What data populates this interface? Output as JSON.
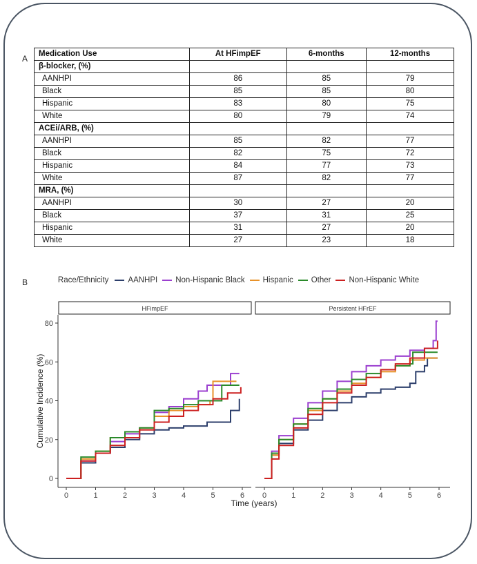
{
  "panels": {
    "a": "A",
    "b": "B"
  },
  "table": {
    "headers": [
      "Medication Use",
      "At HFimpEF",
      "6-months",
      "12-months"
    ],
    "sections": [
      {
        "title": "β-blocker, (%)",
        "rows": [
          {
            "group": "AANHPI",
            "values": [
              "86",
              "85",
              "79"
            ]
          },
          {
            "group": "Black",
            "values": [
              "85",
              "85",
              "80"
            ]
          },
          {
            "group": "Hispanic",
            "values": [
              "83",
              "80",
              "75"
            ]
          },
          {
            "group": "White",
            "values": [
              "80",
              "79",
              "74"
            ]
          }
        ]
      },
      {
        "title": "ACEi/ARB, (%)",
        "rows": [
          {
            "group": "AANHPI",
            "values": [
              "85",
              "82",
              "77"
            ]
          },
          {
            "group": "Black",
            "values": [
              "82",
              "75",
              "72"
            ]
          },
          {
            "group": "Hispanic",
            "values": [
              "84",
              "77",
              "73"
            ]
          },
          {
            "group": "White",
            "values": [
              "87",
              "82",
              "77"
            ]
          }
        ]
      },
      {
        "title": "MRA, (%)",
        "rows": [
          {
            "group": "AANHPI",
            "values": [
              "30",
              "27",
              "20"
            ]
          },
          {
            "group": "Black",
            "values": [
              "37",
              "31",
              "25"
            ]
          },
          {
            "group": "Hispanic",
            "values": [
              "31",
              "27",
              "20"
            ]
          },
          {
            "group": "White",
            "values": [
              "27",
              "23",
              "18"
            ]
          }
        ]
      }
    ]
  },
  "chart_data": {
    "type": "line",
    "title": "",
    "legend_title": "Race/Ethnicity",
    "legend_position": "top",
    "xlabel": "Time (years)",
    "ylabel": "Cumulative Incidence (%)",
    "xlim": [
      0,
      6
    ],
    "ylim": [
      0,
      80
    ],
    "xticks": [
      0,
      1,
      2,
      3,
      4,
      5,
      6
    ],
    "yticks": [
      0,
      20,
      40,
      60,
      80
    ],
    "grid": false,
    "series_meta": [
      {
        "name": "AANHPI",
        "color": "#2c3e6b"
      },
      {
        "name": "Non-Hispanic Black",
        "color": "#9b3fcf"
      },
      {
        "name": "Hispanic",
        "color": "#e8922a"
      },
      {
        "name": "Other",
        "color": "#2a8a2a"
      },
      {
        "name": "Non-Hispanic White",
        "color": "#cc2020"
      }
    ],
    "facets": [
      {
        "label": "HFimpEF",
        "series": [
          {
            "name": "AANHPI",
            "x": [
              0,
              0.5,
              1,
              1.5,
              2,
              2.5,
              3,
              3.5,
              4,
              4.5,
              4.8,
              5.5,
              5.6,
              5.9
            ],
            "y": [
              0,
              8,
              13,
              16,
              20,
              23,
              25,
              26,
              27,
              27,
              29,
              29,
              35,
              41
            ]
          },
          {
            "name": "Non-Hispanic Black",
            "x": [
              0,
              0.5,
              1,
              1.5,
              2,
              2.5,
              3,
              3.5,
              4,
              4.5,
              4.8,
              5.5,
              5.6,
              5.9
            ],
            "y": [
              0,
              9,
              13,
              19,
              23,
              26,
              34,
              37,
              41,
              45,
              48,
              48,
              54,
              54
            ]
          },
          {
            "name": "Hispanic",
            "x": [
              0,
              0.5,
              1,
              1.5,
              2,
              2.5,
              3,
              3.5,
              4,
              4.5,
              4.9,
              5.0,
              5.8
            ],
            "y": [
              0,
              10,
              14,
              21,
              24,
              26,
              32,
              35,
              37,
              38,
              40,
              50,
              50
            ]
          },
          {
            "name": "Other",
            "x": [
              0,
              0.5,
              1,
              1.5,
              2,
              2.5,
              3,
              3.5,
              4,
              4.5,
              5.2,
              5.3,
              5.9
            ],
            "y": [
              0,
              11,
              14,
              21,
              24,
              26,
              35,
              36,
              38,
              40,
              40,
              48,
              48
            ]
          },
          {
            "name": "Non-Hispanic White",
            "x": [
              0,
              0.5,
              1,
              1.5,
              2,
              2.5,
              3,
              3.5,
              4,
              4.5,
              5,
              5.5,
              5.95
            ],
            "y": [
              0,
              9,
              13,
              17,
              21,
              25,
              29,
              32,
              35,
              38,
              41,
              44,
              47
            ]
          }
        ]
      },
      {
        "label": "Persistent HFrEF",
        "series": [
          {
            "name": "AANHPI",
            "x": [
              0,
              0.25,
              0.5,
              1,
              1.5,
              2,
              2.5,
              3,
              3.5,
              4,
              4.5,
              5,
              5.2,
              5.5,
              5.6,
              5.95
            ],
            "y": [
              0,
              12,
              18,
              25,
              30,
              35,
              39,
              42,
              44,
              46,
              47,
              49,
              55,
              58,
              62,
              62
            ]
          },
          {
            "name": "Non-Hispanic Black",
            "x": [
              0,
              0.25,
              0.5,
              1,
              1.5,
              2,
              2.5,
              3,
              3.5,
              4,
              4.5,
              5,
              5.5,
              5.8,
              5.9,
              5.95
            ],
            "y": [
              0,
              14,
              22,
              31,
              39,
              45,
              50,
              55,
              58,
              61,
              63,
              66,
              67,
              71,
              81,
              81
            ]
          },
          {
            "name": "Hispanic",
            "x": [
              0,
              0.25,
              0.5,
              1,
              1.5,
              2,
              2.5,
              3,
              3.5,
              4,
              4.5,
              5,
              5.5,
              5.95
            ],
            "y": [
              0,
              12,
              20,
              28,
              35,
              41,
              45,
              49,
              52,
              55,
              58,
              61,
              62,
              62
            ]
          },
          {
            "name": "Other",
            "x": [
              0,
              0.25,
              0.5,
              1,
              1.5,
              2,
              2.5,
              3,
              3.5,
              4,
              4.5,
              5,
              5.1,
              5.95
            ],
            "y": [
              0,
              13,
              20,
              28,
              36,
              41,
              46,
              51,
              54,
              56,
              58,
              59,
              65,
              65
            ]
          },
          {
            "name": "Non-Hispanic White",
            "x": [
              0,
              0.25,
              0.5,
              1,
              1.5,
              2,
              2.5,
              3,
              3.5,
              4,
              4.5,
              5,
              5.5,
              5.95
            ],
            "y": [
              0,
              10,
              17,
              26,
              33,
              39,
              44,
              48,
              52,
              56,
              59,
              62,
              67,
              71
            ]
          }
        ]
      }
    ]
  }
}
